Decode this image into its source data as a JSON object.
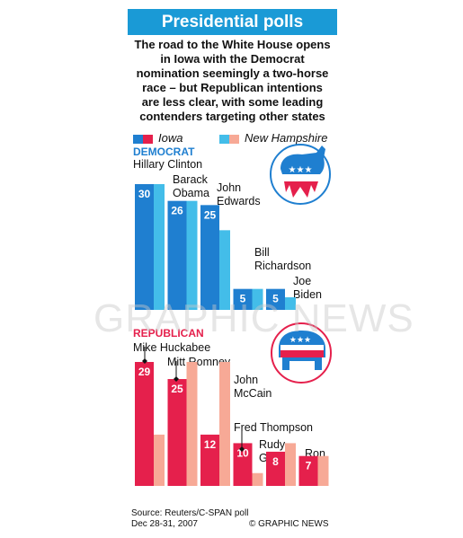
{
  "title": "Presidential polls",
  "intro": "The road to the White House opens in Iowa with the Democrat nomination seemingly a two-horse race – but Republican intentions are less clear, with some leading contenders targeting other states",
  "legend": {
    "iowa": "Iowa",
    "nh": "New Hampshire"
  },
  "colors": {
    "dem_iowa": "#1f7fd0",
    "dem_nh": "#43bde9",
    "rep_iowa": "#e5204c",
    "rep_nh": "#f7a996",
    "title_bg": "#1a9ad6"
  },
  "source": "Source: Reuters/C-SPAN poll",
  "date": "Dec 28-31, 2007",
  "credit": "© GRAPHIC NEWS",
  "watermark": "GRAPHIC NEWS",
  "chart_data": [
    {
      "type": "bar",
      "label": "DEMOCRAT",
      "categories": [
        "Hillary Clinton",
        "Barack Obama",
        "John Edwards",
        "Bill Richardson",
        "Joe Biden"
      ],
      "series": [
        {
          "name": "Iowa",
          "values": [
            30,
            26,
            25,
            5,
            5
          ]
        },
        {
          "name": "New Hampshire",
          "values": [
            30,
            26,
            19,
            5,
            3
          ]
        }
      ]
    },
    {
      "type": "bar",
      "label": "REPUBLICAN",
      "categories": [
        "Mike Huckabee",
        "Mitt Romney",
        "John McCain",
        "Fred Thompson",
        "Rudy Giuliani",
        "Ron Paul"
      ],
      "series": [
        {
          "name": "Iowa",
          "values": [
            29,
            25,
            12,
            10,
            8,
            7
          ]
        },
        {
          "name": "New Hampshire",
          "values": [
            12,
            29,
            29,
            3,
            10,
            7
          ]
        }
      ]
    }
  ]
}
